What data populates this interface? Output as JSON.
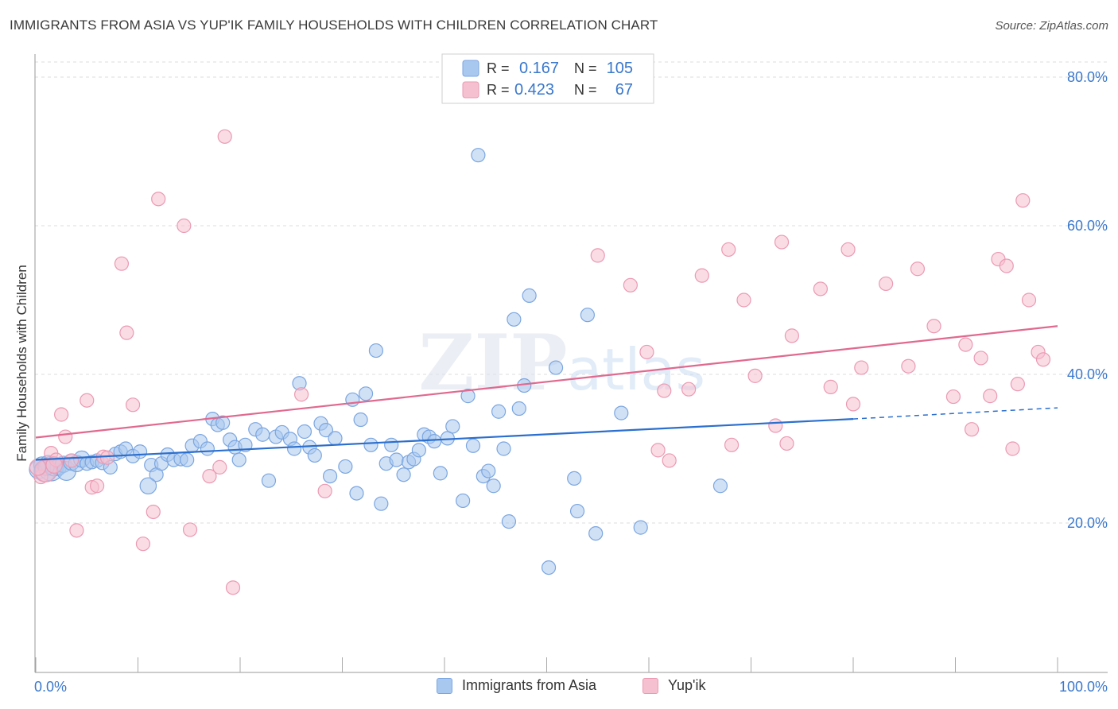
{
  "title": "IMMIGRANTS FROM ASIA VS YUP'IK FAMILY HOUSEHOLDS WITH CHILDREN CORRELATION CHART",
  "source": "Source: ZipAtlas.com",
  "watermark": {
    "zip": "ZIP",
    "atlas": "atlas"
  },
  "colors": {
    "blue_fill": "#a9c8ef",
    "blue_stroke": "#7ba6e0",
    "blue_line": "#2b6fce",
    "pink_fill": "#f5c0d0",
    "pink_stroke": "#eb9ab3",
    "pink_line": "#e0698f",
    "axis_text": "#3a78cc",
    "grid": "#dcdcdc"
  },
  "legend": {
    "rows": [
      {
        "r_label": "R =",
        "r_value": "0.167",
        "n_label": "N =",
        "n_value": "105"
      },
      {
        "r_label": "R =",
        "r_value": "0.423",
        "n_label": "N =",
        "n_value": "67"
      }
    ]
  },
  "bottom_legend": {
    "series1": "Immigrants from Asia",
    "series2": "Yup'ik"
  },
  "chart_data": {
    "type": "scatter",
    "title": "IMMIGRANTS FROM ASIA VS YUP'IK FAMILY HOUSEHOLDS WITH CHILDREN CORRELATION CHART",
    "xlabel": "",
    "ylabel": "Family Households with Children",
    "xlim": [
      0,
      100
    ],
    "ylim": [
      0,
      80
    ],
    "x_tick_labels": [
      "0.0%",
      "100.0%"
    ],
    "y_ticks": [
      20,
      40,
      60,
      80
    ],
    "y_tick_labels": [
      "20.0%",
      "40.0%",
      "60.0%",
      "80.0%"
    ],
    "grid": true,
    "legend_position": "top-center",
    "series": [
      {
        "name": "Immigrants from Asia",
        "R": 0.167,
        "N": 105,
        "trend": {
          "x": [
            0,
            80
          ],
          "y": [
            28.5,
            34.0
          ],
          "dashed_to": [
            100,
            35.5
          ]
        },
        "points": [
          [
            0.3,
            27.2,
            14
          ],
          [
            0.6,
            27.8,
            12
          ],
          [
            0.9,
            27.0,
            16
          ],
          [
            1.2,
            28.0,
            12
          ],
          [
            1.5,
            27.3,
            18
          ],
          [
            1.8,
            27.6,
            14
          ],
          [
            2.2,
            27.5,
            12
          ],
          [
            2.7,
            27.9,
            12
          ],
          [
            3.0,
            27.0,
            14
          ],
          [
            3.5,
            28.2,
            12
          ],
          [
            4.0,
            28.0,
            12
          ],
          [
            4.5,
            28.6,
            12
          ],
          [
            5.0,
            28.0,
            10
          ],
          [
            5.5,
            28.2,
            10
          ],
          [
            6.0,
            28.4,
            10
          ],
          [
            6.5,
            28.1,
            10
          ],
          [
            7.3,
            27.5,
            10
          ],
          [
            7.8,
            29.3,
            10
          ],
          [
            8.3,
            29.6,
            10
          ],
          [
            8.8,
            30.0,
            10
          ],
          [
            9.5,
            29.0,
            10
          ],
          [
            10.2,
            29.6,
            10
          ],
          [
            11.3,
            27.8,
            10
          ],
          [
            11.8,
            26.5,
            10
          ],
          [
            12.3,
            28.0,
            10
          ],
          [
            12.9,
            29.2,
            10
          ],
          [
            13.5,
            28.5,
            10
          ],
          [
            14.2,
            28.6,
            10
          ],
          [
            14.8,
            28.5,
            10
          ],
          [
            15.3,
            30.4,
            10
          ],
          [
            16.1,
            31.0,
            10
          ],
          [
            16.8,
            30.0,
            10
          ],
          [
            17.3,
            34.0,
            10
          ],
          [
            17.8,
            33.2,
            10
          ],
          [
            18.3,
            33.5,
            10
          ],
          [
            19.0,
            31.2,
            10
          ],
          [
            19.5,
            30.2,
            10
          ],
          [
            19.9,
            28.5,
            10
          ],
          [
            20.5,
            30.5,
            10
          ],
          [
            21.5,
            32.6,
            10
          ],
          [
            22.2,
            31.9,
            10
          ],
          [
            22.8,
            25.7,
            10
          ],
          [
            23.5,
            31.6,
            10
          ],
          [
            24.1,
            32.2,
            10
          ],
          [
            24.9,
            31.3,
            10
          ],
          [
            25.3,
            30.0,
            10
          ],
          [
            25.8,
            38.8,
            10
          ],
          [
            26.3,
            32.3,
            10
          ],
          [
            26.8,
            30.2,
            10
          ],
          [
            27.3,
            29.1,
            10
          ],
          [
            27.9,
            33.4,
            10
          ],
          [
            28.4,
            32.5,
            10
          ],
          [
            28.8,
            26.3,
            10
          ],
          [
            29.3,
            31.4,
            10
          ],
          [
            30.3,
            27.6,
            10
          ],
          [
            31.0,
            36.6,
            10
          ],
          [
            31.4,
            24.0,
            10
          ],
          [
            31.8,
            33.9,
            10
          ],
          [
            32.3,
            37.4,
            10
          ],
          [
            32.8,
            30.5,
            10
          ],
          [
            33.3,
            43.2,
            10
          ],
          [
            33.8,
            22.6,
            10
          ],
          [
            34.3,
            28.0,
            10
          ],
          [
            34.8,
            30.5,
            10
          ],
          [
            35.3,
            28.5,
            10
          ],
          [
            36.0,
            26.5,
            10
          ],
          [
            36.5,
            28.2,
            10
          ],
          [
            37.0,
            28.6,
            10
          ],
          [
            37.5,
            29.8,
            10
          ],
          [
            38.0,
            31.9,
            10
          ],
          [
            38.5,
            31.6,
            10
          ],
          [
            39.0,
            31.0,
            10
          ],
          [
            39.6,
            26.7,
            10
          ],
          [
            40.3,
            31.4,
            10
          ],
          [
            40.8,
            33.0,
            10
          ],
          [
            41.8,
            23.0,
            10
          ],
          [
            42.3,
            37.1,
            10
          ],
          [
            42.8,
            30.4,
            10
          ],
          [
            43.3,
            69.5,
            10
          ],
          [
            43.8,
            26.3,
            10
          ],
          [
            44.3,
            27.0,
            10
          ],
          [
            44.8,
            25.0,
            10
          ],
          [
            45.3,
            35.0,
            10
          ],
          [
            45.8,
            30.0,
            10
          ],
          [
            46.3,
            20.2,
            10
          ],
          [
            46.8,
            47.4,
            10
          ],
          [
            47.3,
            35.4,
            10
          ],
          [
            47.8,
            38.5,
            10
          ],
          [
            48.3,
            50.6,
            10
          ],
          [
            50.2,
            14.0,
            10
          ],
          [
            50.9,
            40.9,
            10
          ],
          [
            52.7,
            26.0,
            10
          ],
          [
            53.0,
            21.6,
            10
          ],
          [
            54.0,
            48.0,
            10
          ],
          [
            54.8,
            18.6,
            10
          ],
          [
            57.3,
            34.8,
            10
          ],
          [
            59.2,
            19.4,
            10
          ],
          [
            67.0,
            25.0,
            10
          ],
          [
            11.0,
            25.0,
            12
          ],
          [
            1.0,
            27.5,
            12
          ]
        ]
      },
      {
        "name": "Yup'ik",
        "R": 0.423,
        "N": 67,
        "trend": {
          "x": [
            0,
            100
          ],
          "y": [
            31.5,
            46.5
          ]
        },
        "points": [
          [
            0.5,
            26.2,
            10
          ],
          [
            1.0,
            27.0,
            16
          ],
          [
            1.5,
            29.4,
            10
          ],
          [
            2.0,
            28.5,
            10
          ],
          [
            2.5,
            34.6,
            10
          ],
          [
            2.9,
            31.6,
            10
          ],
          [
            3.5,
            28.4,
            10
          ],
          [
            4.0,
            19.0,
            10
          ],
          [
            5.0,
            36.5,
            10
          ],
          [
            5.5,
            24.8,
            10
          ],
          [
            6.0,
            25.0,
            10
          ],
          [
            6.6,
            28.9,
            10
          ],
          [
            7.0,
            28.8,
            10
          ],
          [
            8.4,
            54.9,
            10
          ],
          [
            8.9,
            45.6,
            10
          ],
          [
            9.5,
            35.9,
            10
          ],
          [
            10.5,
            17.2,
            10
          ],
          [
            11.5,
            21.5,
            10
          ],
          [
            12.0,
            63.6,
            10
          ],
          [
            14.5,
            60.0,
            10
          ],
          [
            15.1,
            19.1,
            10
          ],
          [
            17.0,
            26.3,
            10
          ],
          [
            18.0,
            27.5,
            10
          ],
          [
            18.5,
            72.0,
            10
          ],
          [
            19.3,
            11.3,
            10
          ],
          [
            26.0,
            37.3,
            10
          ],
          [
            28.3,
            24.3,
            10
          ],
          [
            55.0,
            56.0,
            10
          ],
          [
            58.2,
            52.0,
            10
          ],
          [
            59.8,
            43.0,
            10
          ],
          [
            60.9,
            29.8,
            10
          ],
          [
            61.5,
            37.8,
            10
          ],
          [
            62.0,
            28.4,
            10
          ],
          [
            63.9,
            38.0,
            10
          ],
          [
            65.2,
            53.3,
            10
          ],
          [
            67.8,
            56.8,
            10
          ],
          [
            68.1,
            30.5,
            10
          ],
          [
            69.3,
            50.0,
            10
          ],
          [
            70.4,
            39.8,
            10
          ],
          [
            72.4,
            33.1,
            10
          ],
          [
            73.0,
            57.8,
            10
          ],
          [
            73.5,
            30.7,
            10
          ],
          [
            74.0,
            45.2,
            10
          ],
          [
            76.8,
            51.5,
            10
          ],
          [
            77.8,
            38.3,
            10
          ],
          [
            79.5,
            56.8,
            10
          ],
          [
            80.0,
            36.0,
            10
          ],
          [
            80.8,
            40.9,
            10
          ],
          [
            83.2,
            52.2,
            10
          ],
          [
            85.4,
            41.1,
            10
          ],
          [
            86.3,
            54.2,
            10
          ],
          [
            87.9,
            46.5,
            10
          ],
          [
            89.8,
            37.0,
            10
          ],
          [
            91.0,
            44.0,
            10
          ],
          [
            91.6,
            32.6,
            10
          ],
          [
            92.5,
            42.2,
            10
          ],
          [
            93.4,
            37.1,
            10
          ],
          [
            94.2,
            55.5,
            10
          ],
          [
            95.0,
            54.6,
            10
          ],
          [
            95.6,
            30.0,
            10
          ],
          [
            96.1,
            38.7,
            10
          ],
          [
            96.6,
            63.4,
            10
          ],
          [
            97.2,
            50.0,
            10
          ],
          [
            98.1,
            43.0,
            10
          ],
          [
            98.6,
            42.0,
            10
          ],
          [
            0.2,
            27.5,
            12
          ],
          [
            1.8,
            27.8,
            12
          ]
        ]
      }
    ]
  }
}
